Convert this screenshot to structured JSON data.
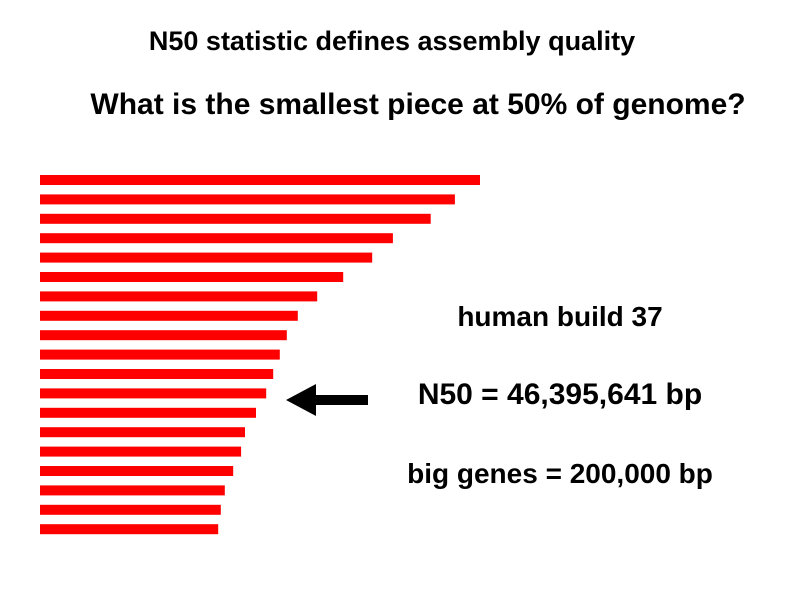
{
  "title": "N50 statistic defines assembly quality",
  "subtitle": "What is the smallest piece at 50% of genome?",
  "labels": {
    "build": "human build 37",
    "n50": "N50 = 46,395,641 bp",
    "big_genes": "big genes = 200,000 bp"
  },
  "colors": {
    "bar": "#ff0000",
    "arrow": "#000000"
  },
  "pieces": {
    "relative_lengths": [
      1.0,
      0.943,
      0.888,
      0.802,
      0.755,
      0.689,
      0.63,
      0.586,
      0.561,
      0.545,
      0.53,
      0.514,
      0.491,
      0.466,
      0.457,
      0.439,
      0.42,
      0.411,
      0.405
    ],
    "n50_index": 11
  },
  "arrow_icon": "left-arrow-icon"
}
